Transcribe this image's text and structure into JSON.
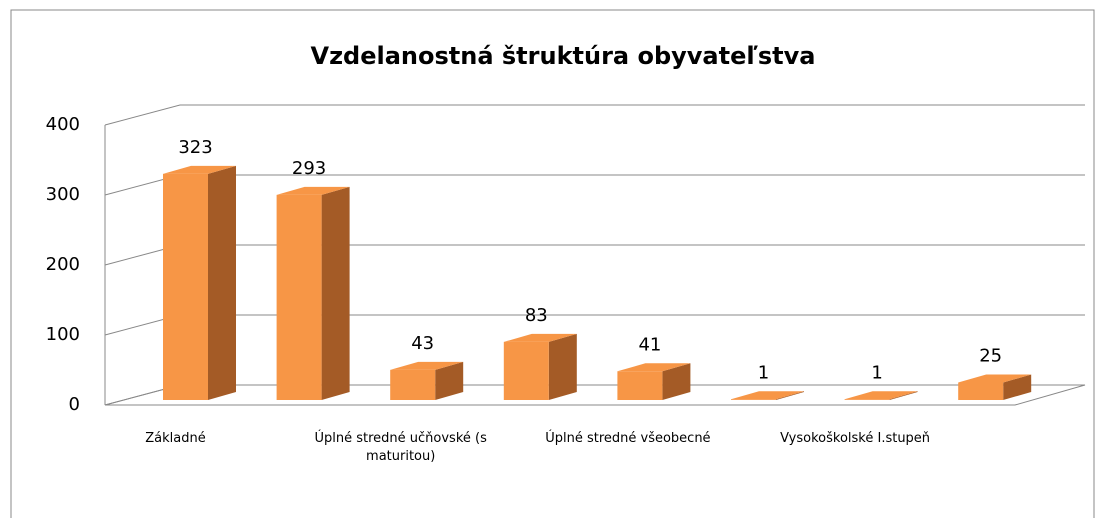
{
  "chart_data": {
    "type": "bar",
    "title": "Vzdelanostná štruktúra obyvateľstva",
    "categories": [
      "Základné",
      null,
      "Úplné stredné učňovské (s maturitou)",
      null,
      "Úplné stredné všeobecné",
      null,
      "Vysokoškolské I.stupeň",
      null
    ],
    "values": [
      323,
      293,
      43,
      83,
      41,
      1,
      1,
      25
    ],
    "color": "#f79646",
    "side_color": "#a45b26",
    "ylim": [
      0,
      400
    ],
    "yticks": [
      0,
      100,
      200,
      300,
      400
    ],
    "grid": true
  }
}
